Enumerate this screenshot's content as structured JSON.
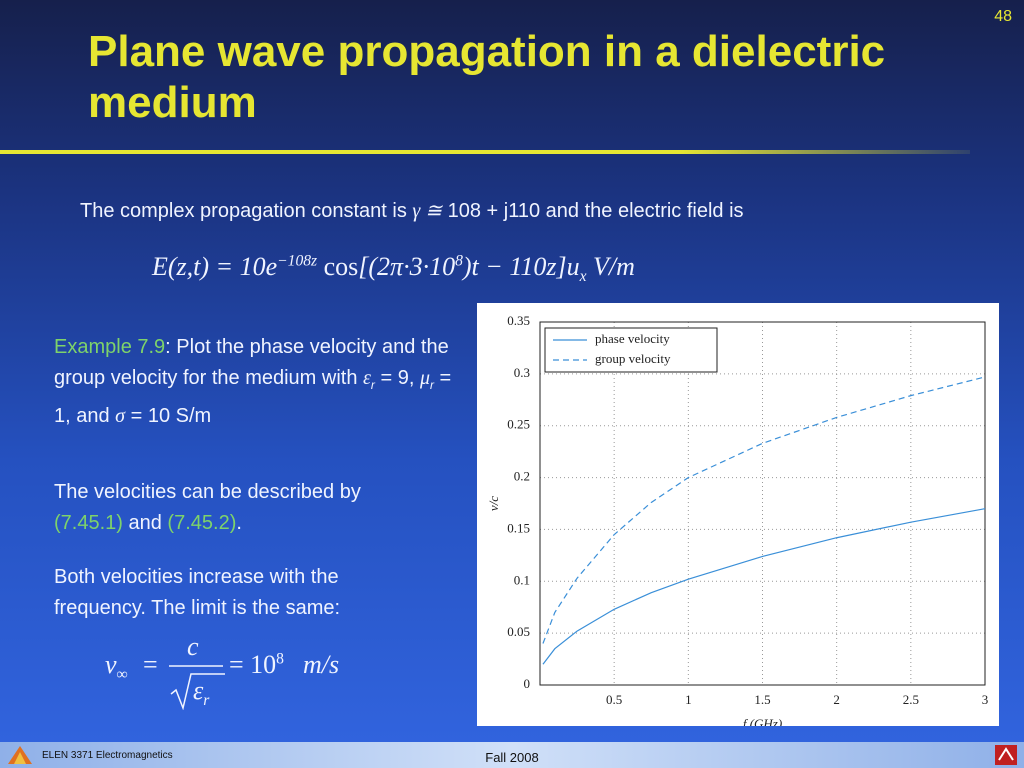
{
  "slide_number": "48",
  "title": "Plane wave propagation in a dielectric medium",
  "intro": {
    "before": "The complex propagation constant is ",
    "symbol": "γ ≅",
    "after": " 108 + j110 and the electric field is"
  },
  "field_equation": [
    "E(z,t) = 10e",
    "−108z",
    " cos",
    "[(2π·3·10",
    "8",
    ")t − 110z]",
    "u",
    "x",
    " V/m"
  ],
  "example": [
    "Example 7.9",
    ": Plot the phase velocity and the group velocity for the medium with ",
    "ε",
    "r",
    " = 9, ",
    "μ",
    "r",
    " = 1, and ",
    "σ",
    " = 10 S/m"
  ],
  "velocities_text": [
    "The velocities can be described by ",
    "(7.45.1)",
    " and ",
    "(7.45.2)",
    "."
  ],
  "limit_text": "Both velocities increase with the frequency. The limit is the same:",
  "limit_equation": {
    "lhs": "v",
    "lhs_sub": "∞",
    "eq1": "=",
    "numerator": "c",
    "den": "ε",
    "den_sub": "r",
    "eq2": "= 10",
    "exp": "8",
    "unit": "m/s"
  },
  "footer": {
    "course": "ELEN 3371 Electromagnetics",
    "term": "Fall 2008"
  },
  "chart_data": {
    "type": "line",
    "xlabel": "f (GHz)",
    "ylabel": "v/c",
    "x": [
      0.02,
      0.1,
      0.25,
      0.5,
      0.75,
      1,
      1.5,
      2,
      2.5,
      3
    ],
    "series": [
      {
        "name": "phase velocity",
        "color": "#3a8fd8",
        "line_style": "solid",
        "values": [
          0.02,
          0.035,
          0.052,
          0.073,
          0.089,
          0.102,
          0.124,
          0.142,
          0.157,
          0.17
        ]
      },
      {
        "name": "group velocity",
        "color": "#3a8fd8",
        "line_style": "dashed",
        "values": [
          0.04,
          0.07,
          0.103,
          0.145,
          0.176,
          0.2,
          0.233,
          0.258,
          0.279,
          0.297
        ]
      }
    ],
    "xlim": [
      0,
      3
    ],
    "ylim": [
      0,
      0.35
    ],
    "xticks": [
      0.5,
      1,
      1.5,
      2,
      2.5,
      3
    ],
    "yticks": [
      0,
      0.05,
      0.1,
      0.15,
      0.2,
      0.25,
      0.3,
      0.35
    ],
    "grid": true,
    "legend": "upper left"
  }
}
